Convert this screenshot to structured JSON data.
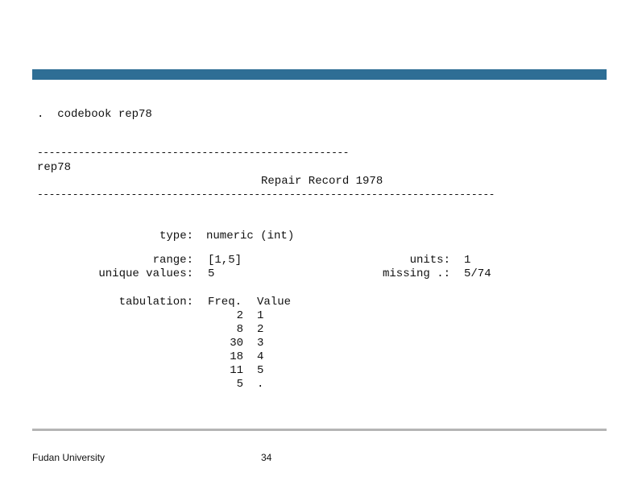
{
  "command": ".  codebook rep78",
  "rule_short": "-----------------------------------------------------",
  "var_name": "rep78",
  "var_label": "Repair Record 1978",
  "rule_long": "------------------------------------------------------------------------------",
  "fields": {
    "type_label": "type:",
    "type_value": "numeric (int)",
    "range_label": "range:",
    "range_value": "[1,5]",
    "units_label": "units:",
    "units_value": "1",
    "unique_label": "unique values:",
    "unique_value": "5",
    "missing_label": "missing .:",
    "missing_value": "5/74"
  },
  "tabulation": {
    "label": "tabulation:",
    "freq_header": "Freq.",
    "value_header": "Value",
    "rows": [
      {
        "freq": "2",
        "value": "1"
      },
      {
        "freq": "8",
        "value": "2"
      },
      {
        "freq": "30",
        "value": "3"
      },
      {
        "freq": "18",
        "value": "4"
      },
      {
        "freq": "11",
        "value": "5"
      },
      {
        "freq": "5",
        "value": "."
      }
    ]
  },
  "footer": {
    "org": "Fudan University",
    "page": "34"
  }
}
